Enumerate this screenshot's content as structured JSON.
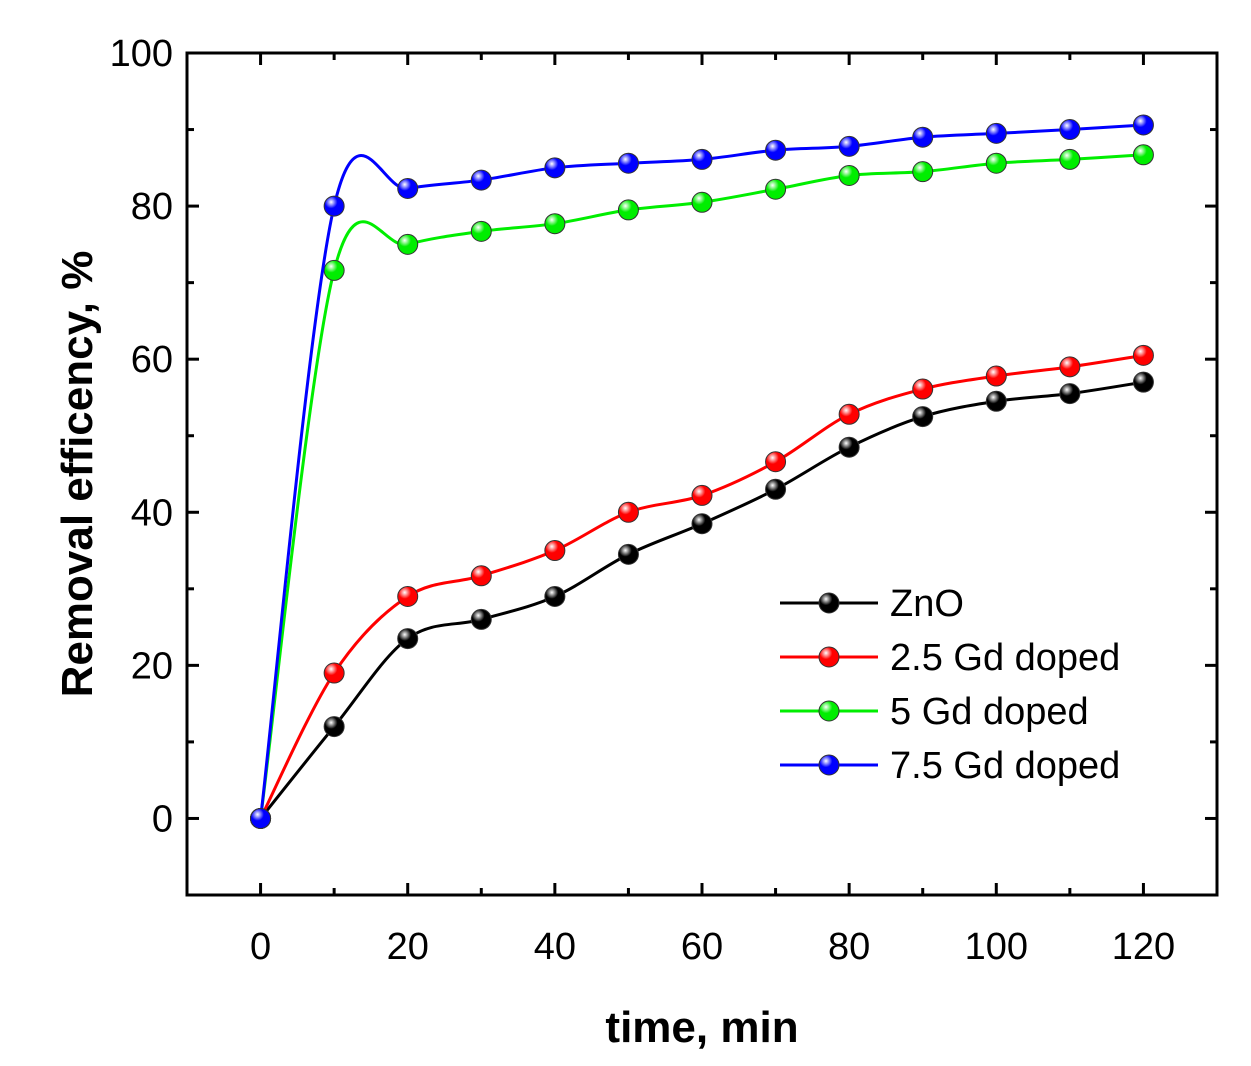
{
  "chart_data": {
    "type": "line",
    "title": "",
    "xlabel": "time, min",
    "ylabel": "Removal efficency, %",
    "xlim": [
      -10,
      130
    ],
    "ylim": [
      -10,
      100
    ],
    "xticks": [
      0,
      20,
      40,
      60,
      80,
      100,
      120
    ],
    "yticks": [
      0,
      20,
      40,
      60,
      80,
      100
    ],
    "grid": false,
    "legend_position": "bottom-right",
    "x": [
      0,
      10,
      20,
      30,
      40,
      50,
      60,
      70,
      80,
      90,
      100,
      110,
      120
    ],
    "series": [
      {
        "name": "ZnO",
        "color": "#000000",
        "values": [
          0,
          12,
          23.5,
          26,
          29,
          34.5,
          38.5,
          43,
          48.5,
          52.5,
          54.5,
          55.5,
          57
        ]
      },
      {
        "name": "2.5 Gd doped",
        "color": "#ff0000",
        "values": [
          0,
          19,
          29,
          31.7,
          35,
          40,
          42.2,
          46.6,
          52.8,
          56.1,
          57.8,
          59,
          60.5
        ]
      },
      {
        "name": "5 Gd doped",
        "color": "#00ee00",
        "values": [
          0,
          71.6,
          75,
          76.7,
          77.7,
          79.5,
          80.5,
          82.2,
          84,
          84.5,
          85.6,
          86.1,
          86.7
        ]
      },
      {
        "name": "7.5 Gd doped",
        "color": "#0000ff",
        "values": [
          0,
          80,
          82.3,
          83.4,
          85,
          85.6,
          86.1,
          87.3,
          87.8,
          89,
          89.5,
          90,
          90.6
        ]
      }
    ]
  }
}
